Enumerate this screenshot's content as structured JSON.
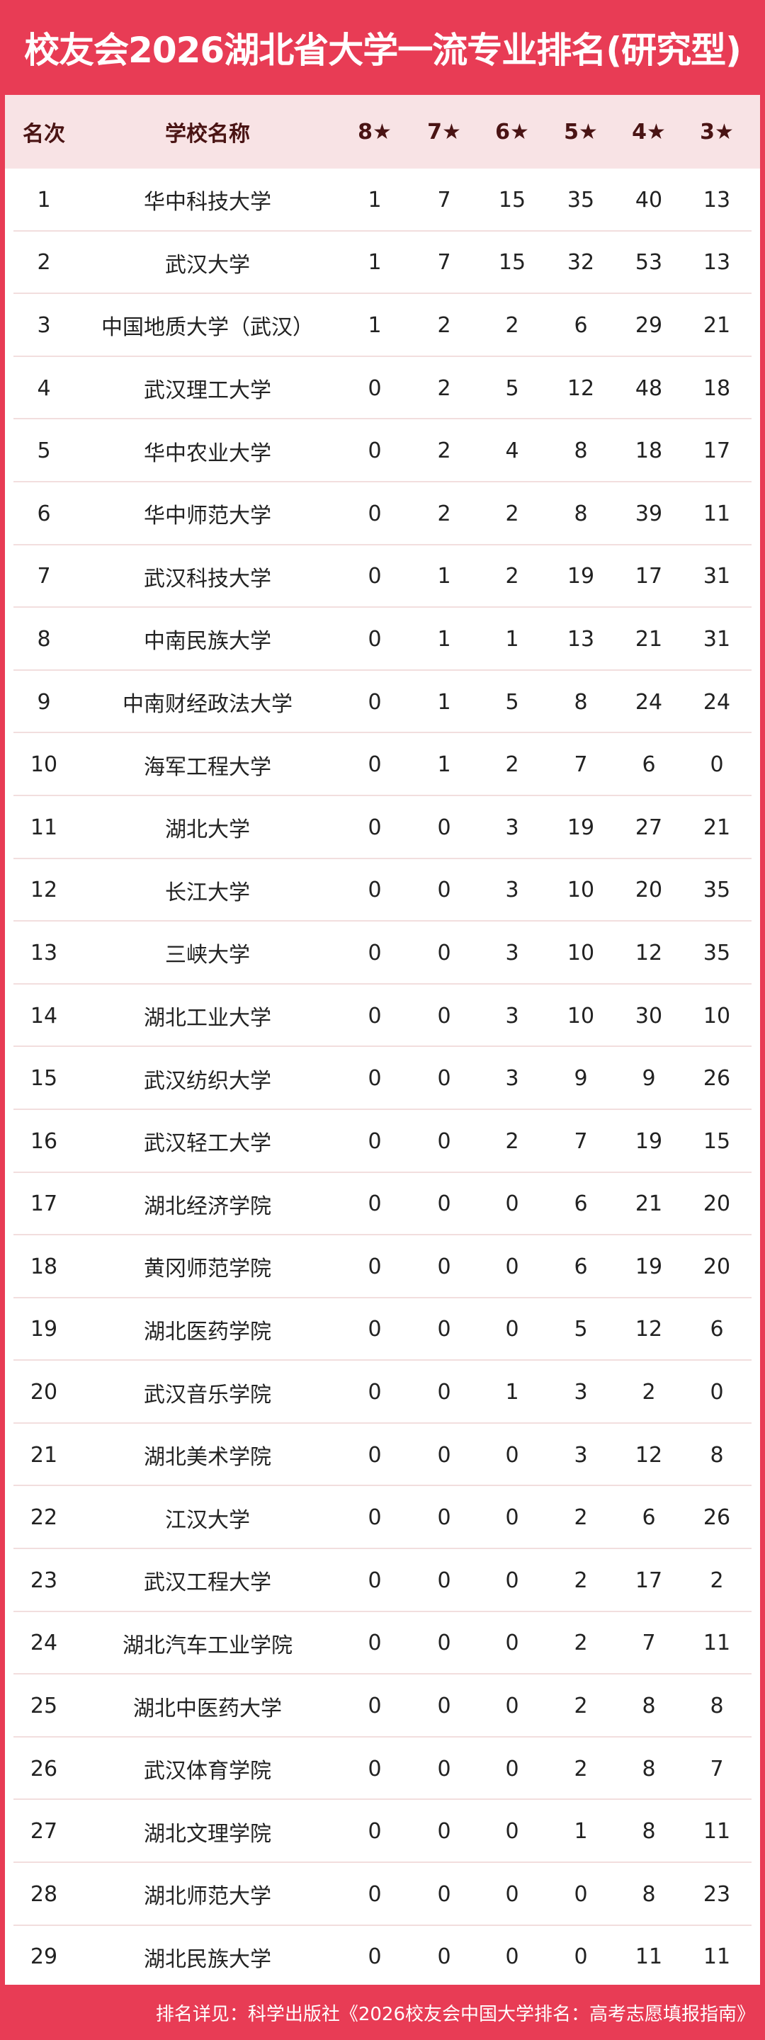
{
  "title": "校友会2026湖北省大学一流专业排名(研究型)",
  "colors": {
    "accent": "#e83c55",
    "header_bg": "#f8e3e5",
    "header_text": "#4a1414"
  },
  "columns": [
    "名次",
    "学校名称",
    "8★",
    "7★",
    "6★",
    "5★",
    "4★",
    "3★"
  ],
  "rows": [
    [
      "1",
      "华中科技大学",
      "1",
      "7",
      "15",
      "35",
      "40",
      "13"
    ],
    [
      "2",
      "武汉大学",
      "1",
      "7",
      "15",
      "32",
      "53",
      "13"
    ],
    [
      "3",
      "中国地质大学（武汉）",
      "1",
      "2",
      "2",
      "6",
      "29",
      "21"
    ],
    [
      "4",
      "武汉理工大学",
      "0",
      "2",
      "5",
      "12",
      "48",
      "18"
    ],
    [
      "5",
      "华中农业大学",
      "0",
      "2",
      "4",
      "8",
      "18",
      "17"
    ],
    [
      "6",
      "华中师范大学",
      "0",
      "2",
      "2",
      "8",
      "39",
      "11"
    ],
    [
      "7",
      "武汉科技大学",
      "0",
      "1",
      "2",
      "19",
      "17",
      "31"
    ],
    [
      "8",
      "中南民族大学",
      "0",
      "1",
      "1",
      "13",
      "21",
      "31"
    ],
    [
      "9",
      "中南财经政法大学",
      "0",
      "1",
      "5",
      "8",
      "24",
      "24"
    ],
    [
      "10",
      "海军工程大学",
      "0",
      "1",
      "2",
      "7",
      "6",
      "0"
    ],
    [
      "11",
      "湖北大学",
      "0",
      "0",
      "3",
      "19",
      "27",
      "21"
    ],
    [
      "12",
      "长江大学",
      "0",
      "0",
      "3",
      "10",
      "20",
      "35"
    ],
    [
      "13",
      "三峡大学",
      "0",
      "0",
      "3",
      "10",
      "12",
      "35"
    ],
    [
      "14",
      "湖北工业大学",
      "0",
      "0",
      "3",
      "10",
      "30",
      "10"
    ],
    [
      "15",
      "武汉纺织大学",
      "0",
      "0",
      "3",
      "9",
      "9",
      "26"
    ],
    [
      "16",
      "武汉轻工大学",
      "0",
      "0",
      "2",
      "7",
      "19",
      "15"
    ],
    [
      "17",
      "湖北经济学院",
      "0",
      "0",
      "0",
      "6",
      "21",
      "20"
    ],
    [
      "18",
      "黄冈师范学院",
      "0",
      "0",
      "0",
      "6",
      "19",
      "20"
    ],
    [
      "19",
      "湖北医药学院",
      "0",
      "0",
      "0",
      "5",
      "12",
      "6"
    ],
    [
      "20",
      "武汉音乐学院",
      "0",
      "0",
      "1",
      "3",
      "2",
      "0"
    ],
    [
      "21",
      "湖北美术学院",
      "0",
      "0",
      "0",
      "3",
      "12",
      "8"
    ],
    [
      "22",
      "江汉大学",
      "0",
      "0",
      "0",
      "2",
      "6",
      "26"
    ],
    [
      "23",
      "武汉工程大学",
      "0",
      "0",
      "0",
      "2",
      "17",
      "2"
    ],
    [
      "24",
      "湖北汽车工业学院",
      "0",
      "0",
      "0",
      "2",
      "7",
      "11"
    ],
    [
      "25",
      "湖北中医药大学",
      "0",
      "0",
      "0",
      "2",
      "8",
      "8"
    ],
    [
      "26",
      "武汉体育学院",
      "0",
      "0",
      "0",
      "2",
      "8",
      "7"
    ],
    [
      "27",
      "湖北文理学院",
      "0",
      "0",
      "0",
      "1",
      "8",
      "11"
    ],
    [
      "28",
      "湖北师范大学",
      "0",
      "0",
      "0",
      "0",
      "8",
      "23"
    ],
    [
      "29",
      "湖北民族大学",
      "0",
      "0",
      "0",
      "0",
      "11",
      "11"
    ]
  ],
  "footer": "排名详见：科学出版社《2026校友会中国大学排名：高考志愿填报指南》"
}
